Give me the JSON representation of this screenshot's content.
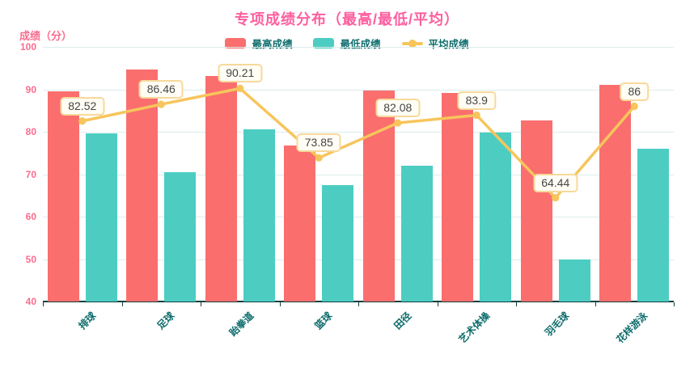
{
  "title": "专项成绩分布（最高/最低/平均）",
  "y_axis_name": "成绩（分）",
  "legend": {
    "items": [
      {
        "label": "最高成绩",
        "type": "bar",
        "color": "#fa6e6e"
      },
      {
        "label": "最低成绩",
        "type": "bar",
        "color": "#4dcdc2"
      },
      {
        "label": "平均成绩",
        "type": "line",
        "color": "#f7c55c"
      }
    ]
  },
  "chart_data": {
    "type": "bar",
    "title": "专项成绩分布（最高/最低/平均）",
    "categories": [
      "排球",
      "足球",
      "跆拳道",
      "篮球",
      "田径",
      "艺术体操",
      "羽毛球",
      "花样游泳"
    ],
    "series": [
      {
        "name": "最高成绩",
        "type": "bar",
        "color": "#fa6e6e",
        "values": [
          89.5,
          94.6,
          93.2,
          76.8,
          89.7,
          89.2,
          82.7,
          91
        ]
      },
      {
        "name": "最低成绩",
        "type": "bar",
        "color": "#4dcdc2",
        "values": [
          79.6,
          70.5,
          80.5,
          67.5,
          72,
          79.8,
          50,
          76
        ]
      },
      {
        "name": "平均成绩",
        "type": "line",
        "color": "#f7c55c",
        "values": [
          82.52,
          86.46,
          90.21,
          73.85,
          82.08,
          83.9,
          64.44,
          86
        ],
        "point_labels": [
          "82.52",
          "86.46",
          "90.21",
          "73.85",
          "82.08",
          "83.9",
          "64.44",
          "86"
        ]
      }
    ],
    "xlabel": "",
    "ylabel": "成绩（分）",
    "ylim": [
      40,
      100
    ],
    "yticks": [
      100,
      90,
      80,
      70,
      60,
      50,
      40
    ],
    "grid": true,
    "legend_position": "top"
  },
  "colors": {
    "background": "#ffffff",
    "title": "#fc5f9f",
    "y_axis_text": "#f96d8e",
    "x_axis_text": "#0d6c6c",
    "legend_text": "#0d6c6c",
    "grid_line": "#dcecec",
    "axis_line": "#123f3f",
    "label_box_bg": "#fffdf4",
    "label_box_border": "#f7d99c",
    "label_text": "#454545"
  }
}
